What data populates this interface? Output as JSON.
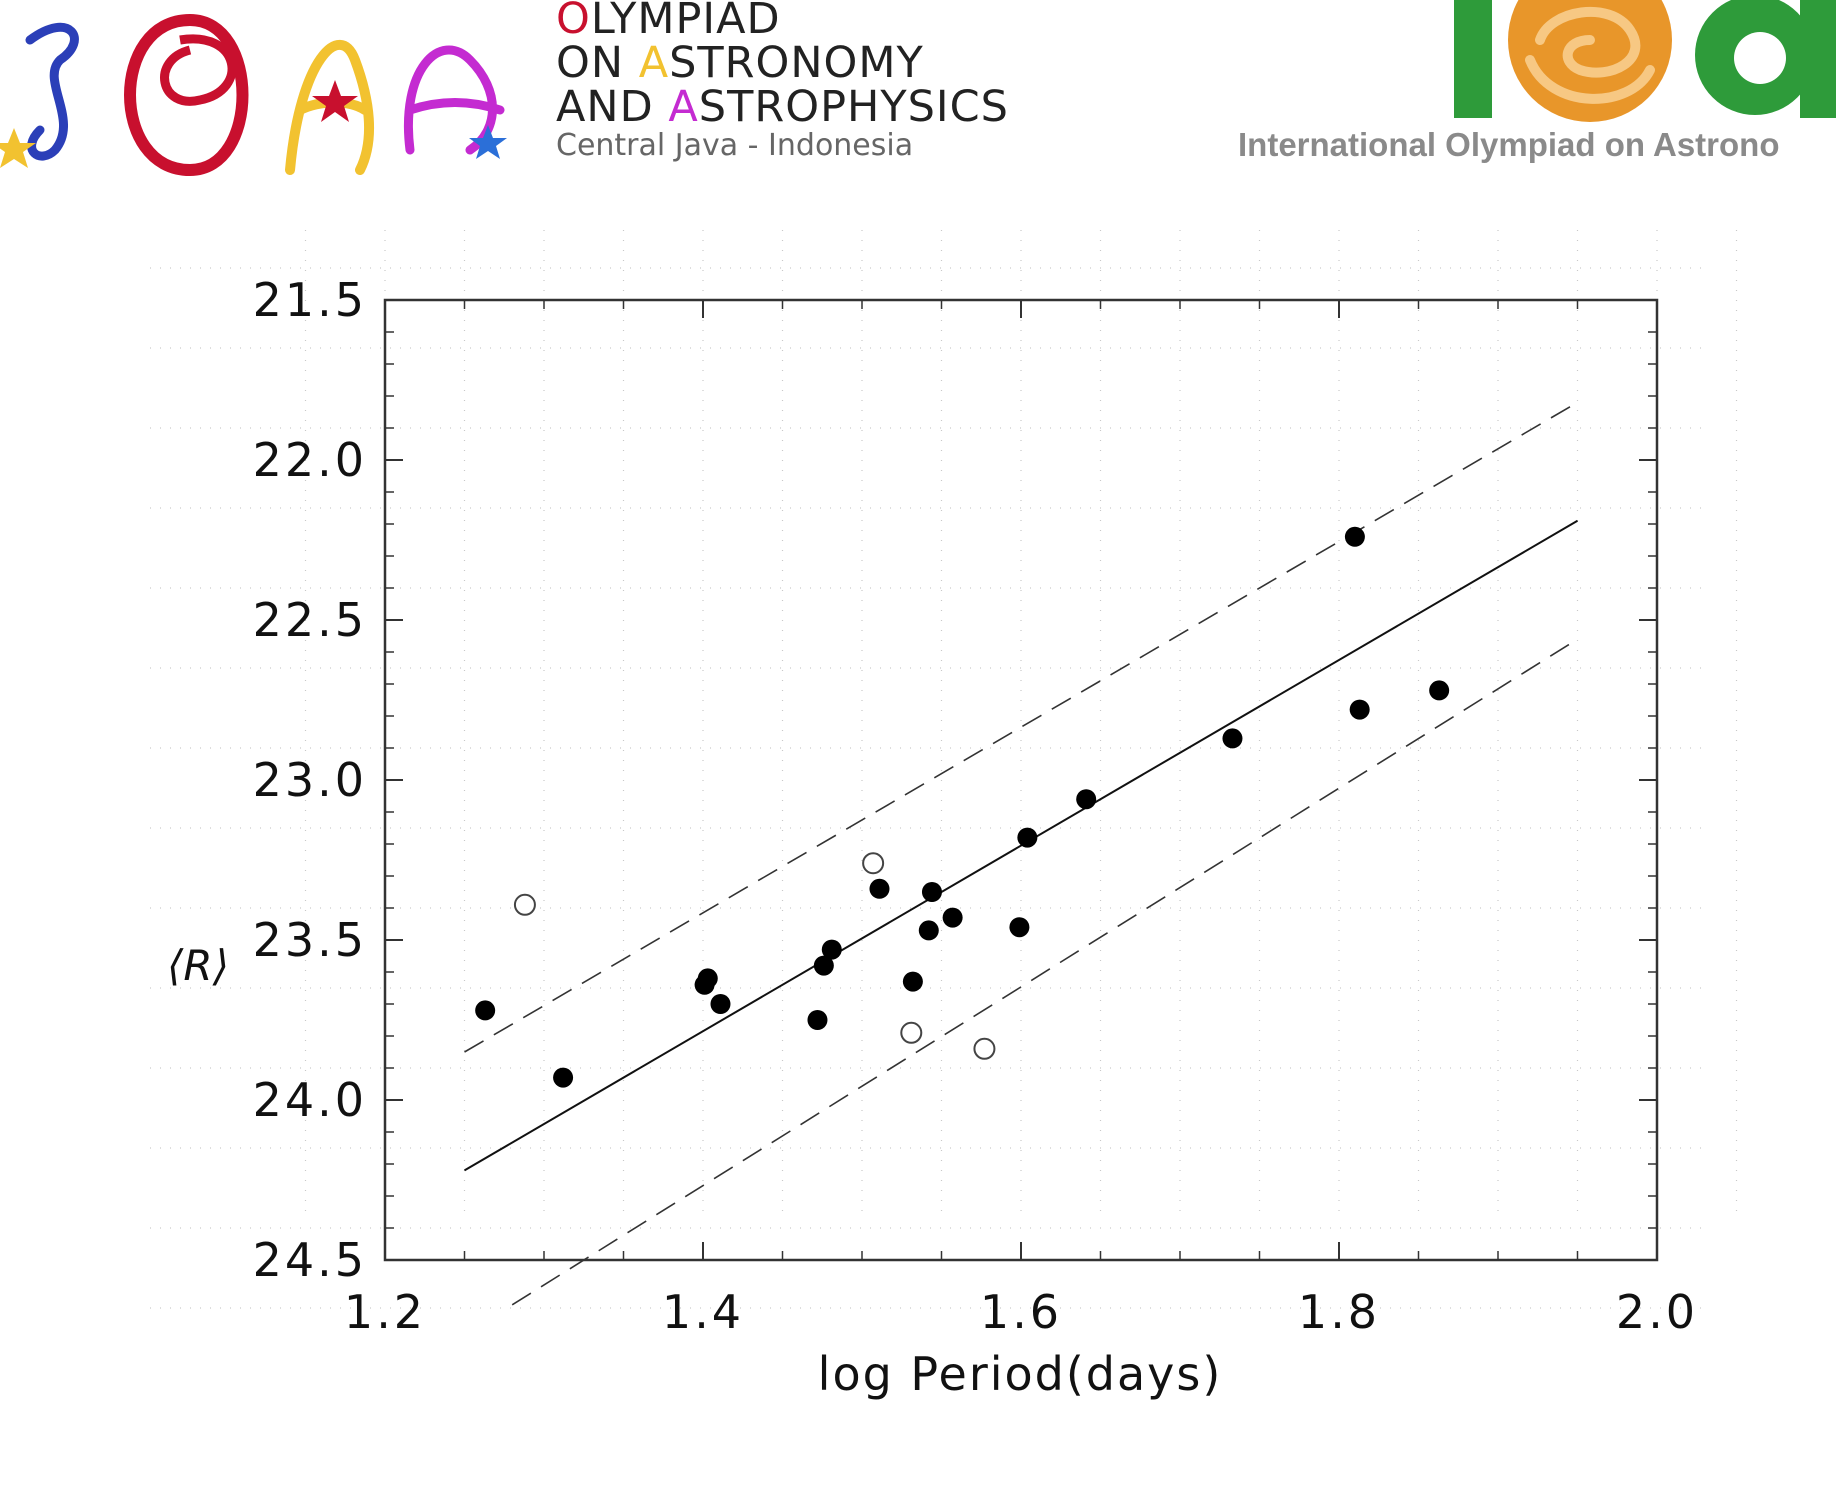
{
  "header": {
    "left_logo": {
      "lines": [
        {
          "first": "O",
          "rest": "LYMPIAD",
          "color": "red"
        },
        {
          "lead": "ON ",
          "first": "A",
          "rest": "STRONOMY",
          "color": "yellow"
        },
        {
          "lead": "AND ",
          "first": "A",
          "rest": "STROPHYSICS",
          "color": "magenta"
        }
      ],
      "line1": "LYMPIAD",
      "line1_initial": "O",
      "line2_lead": "ON ",
      "line2_initial": "A",
      "line2_rest": "STRONOMY",
      "line3_lead": "AND ",
      "line3_initial": "A",
      "line3_rest": "STROPHYSICS",
      "location": "Central Java - Indonesia",
      "monogram": "IOAA"
    },
    "right_logo": {
      "caption": "International Olympiad on Astrono",
      "monogram": "ioa"
    },
    "colors": {
      "red": "#c8102e",
      "yellow": "#f2c230",
      "magenta": "#c42bd1",
      "blue": "#2b3fb8",
      "green": "#2e9b3a",
      "orange": "#e8962a"
    }
  },
  "chart_data": {
    "type": "scatter",
    "title": "",
    "xlabel": "log Period(days)",
    "ylabel": "⟨R⟩",
    "xlim": [
      1.2,
      2.0
    ],
    "ylim": [
      24.5,
      21.5
    ],
    "y_inverted": true,
    "x_ticks": [
      "1.2",
      "1.4",
      "1.6",
      "1.8",
      "2.0"
    ],
    "y_ticks": [
      "21.5",
      "22.0",
      "22.5",
      "23.0",
      "23.5",
      "24.0",
      "24.5"
    ],
    "grid": "dotted",
    "series": [
      {
        "name": "",
        "marker": "filled-circle",
        "points": [
          [
            1.263,
            23.72
          ],
          [
            1.312,
            23.93
          ],
          [
            1.401,
            23.64
          ],
          [
            1.403,
            23.62
          ],
          [
            1.411,
            23.7
          ],
          [
            1.472,
            23.75
          ],
          [
            1.476,
            23.58
          ],
          [
            1.481,
            23.53
          ],
          [
            1.511,
            23.34
          ],
          [
            1.532,
            23.63
          ],
          [
            1.542,
            23.47
          ],
          [
            1.544,
            23.35
          ],
          [
            1.557,
            23.43
          ],
          [
            1.599,
            23.46
          ],
          [
            1.604,
            23.18
          ],
          [
            1.641,
            23.06
          ],
          [
            1.733,
            22.87
          ],
          [
            1.81,
            22.24
          ],
          [
            1.813,
            22.78
          ],
          [
            1.863,
            22.72
          ]
        ]
      },
      {
        "name": "",
        "marker": "open-circle",
        "points": [
          [
            1.288,
            23.39
          ],
          [
            1.507,
            23.26
          ],
          [
            1.531,
            23.79
          ],
          [
            1.577,
            23.84
          ]
        ]
      }
    ],
    "lines": [
      {
        "style": "solid",
        "x": [
          1.25,
          1.95
        ],
        "y": [
          24.22,
          22.19
        ]
      },
      {
        "style": "dashed",
        "x": [
          1.25,
          1.95
        ],
        "y": [
          23.85,
          21.82
        ]
      },
      {
        "style": "dashed",
        "x": [
          1.28,
          1.95
        ],
        "y": [
          24.64,
          22.56
        ]
      }
    ]
  }
}
